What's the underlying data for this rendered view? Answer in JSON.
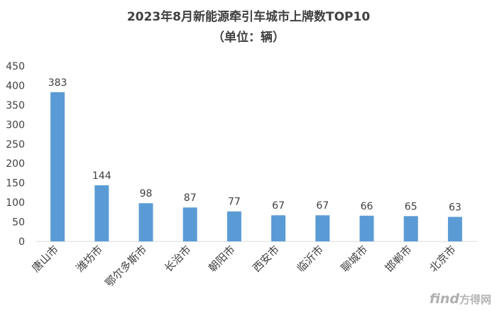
{
  "chart_data": {
    "type": "bar",
    "title": "2023年8月新能源牵引车城市上牌数TOP10",
    "subtitle": "（单位：辆）",
    "xlabel": "",
    "ylabel": "",
    "categories": [
      "唐山市",
      "潍坊市",
      "鄂尔多斯市",
      "长治市",
      "朝阳市",
      "西安市",
      "临沂市",
      "聊城市",
      "邯郸市",
      "北京市"
    ],
    "values": [
      383,
      144,
      98,
      87,
      77,
      67,
      67,
      66,
      65,
      63
    ],
    "ylim": [
      0,
      450
    ],
    "yticks": [
      0,
      50,
      100,
      150,
      200,
      250,
      300,
      350,
      400,
      450
    ],
    "grid": false,
    "legend": "none",
    "bar_color": "#5b9bd5"
  },
  "watermark": {
    "find": "find",
    "site": "方得网"
  }
}
